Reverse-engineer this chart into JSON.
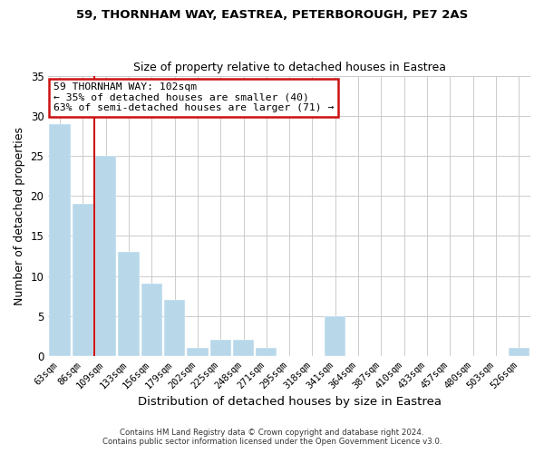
{
  "title": "59, THORNHAM WAY, EASTREA, PETERBOROUGH, PE7 2AS",
  "subtitle": "Size of property relative to detached houses in Eastrea",
  "xlabel": "Distribution of detached houses by size in Eastrea",
  "ylabel": "Number of detached properties",
  "bar_labels": [
    "63sqm",
    "86sqm",
    "109sqm",
    "133sqm",
    "156sqm",
    "179sqm",
    "202sqm",
    "225sqm",
    "248sqm",
    "271sqm",
    "295sqm",
    "318sqm",
    "341sqm",
    "364sqm",
    "387sqm",
    "410sqm",
    "433sqm",
    "457sqm",
    "480sqm",
    "503sqm",
    "526sqm"
  ],
  "bar_values": [
    29,
    19,
    25,
    13,
    9,
    7,
    1,
    2,
    2,
    1,
    0,
    0,
    5,
    0,
    0,
    0,
    0,
    0,
    0,
    0,
    1
  ],
  "bar_color": "#b8d8ea",
  "highlight_color": "#cc1111",
  "highlight_index": 2,
  "annotation_text": "59 THORNHAM WAY: 102sqm\n← 35% of detached houses are smaller (40)\n63% of semi-detached houses are larger (71) →",
  "annotation_box_color": "#ffffff",
  "annotation_box_edge": "#cc1111",
  "ylim": [
    0,
    35
  ],
  "yticks": [
    0,
    5,
    10,
    15,
    20,
    25,
    30,
    35
  ],
  "footer_line1": "Contains HM Land Registry data © Crown copyright and database right 2024.",
  "footer_line2": "Contains public sector information licensed under the Open Government Licence v3.0.",
  "background_color": "#ffffff",
  "grid_color": "#cccccc"
}
